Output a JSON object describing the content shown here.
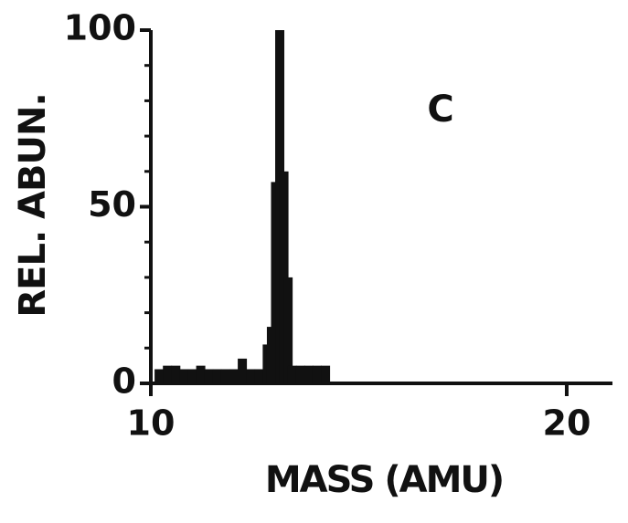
{
  "chart_data": {
    "type": "bar",
    "annotation": "C",
    "xlabel": "MASS (AMU)",
    "ylabel": "REL. ABUN.",
    "x": [
      10.2,
      10.4,
      10.6,
      10.8,
      11.0,
      11.2,
      11.4,
      11.6,
      11.8,
      12.0,
      12.2,
      12.4,
      12.6,
      12.8,
      12.9,
      13.0,
      13.1,
      13.2,
      13.3,
      13.4,
      13.6,
      13.8,
      14.0,
      14.2
    ],
    "values": [
      4,
      5,
      5,
      4,
      4,
      5,
      4,
      4,
      4,
      4,
      7,
      4,
      4,
      11,
      16,
      57,
      100,
      60,
      30,
      5,
      5,
      5,
      5,
      5
    ],
    "color": "#111111",
    "xlim": [
      10,
      21.1
    ],
    "xticks": [
      10,
      20
    ],
    "ylim": [
      0,
      100
    ],
    "yticks": [
      0,
      50,
      100
    ],
    "yminorticks": [
      10,
      20,
      30,
      40,
      60,
      70,
      80,
      90
    ]
  }
}
